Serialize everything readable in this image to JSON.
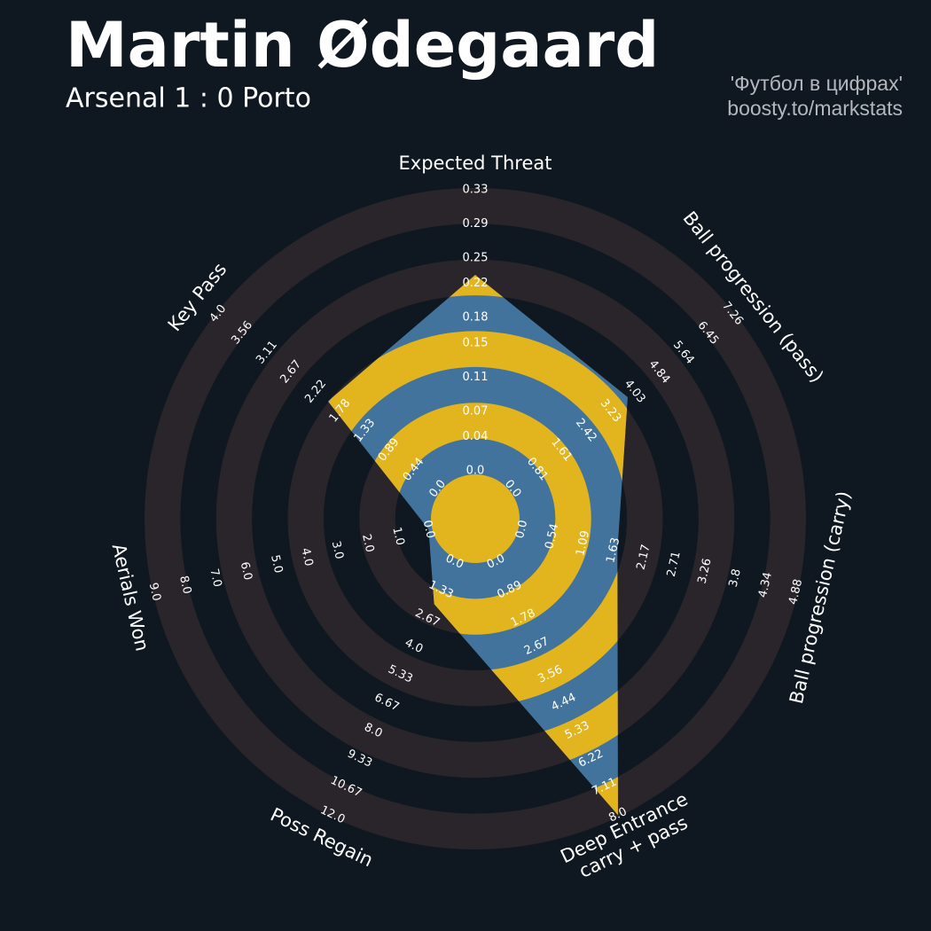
{
  "chart_data": {
    "type": "radar",
    "title": "Martin Ødegaard",
    "subtitle": "Arsenal 1 : 0 Porto",
    "credits": [
      "'Футбол в цифрах'",
      "boosty.to/markstats"
    ],
    "polygon_color": "#41739c",
    "ring_color": "#29252b",
    "ring_color_in_polygon": "#e2b41e",
    "axes": [
      {
        "name": "Expected Threat",
        "value": 0.23,
        "range": [
          0,
          0.33
        ],
        "ticks": [
          {
            "value": 0,
            "label": "0.0"
          },
          0.04,
          0.07,
          0.11,
          0.15,
          0.18,
          0.22,
          0.25,
          0.29,
          0.33
        ]
      },
      {
        "name": "Ball progression (pass)",
        "value": 3.8,
        "range": [
          0,
          7.26
        ],
        "ticks": [
          {
            "value": 0,
            "label": "0.0"
          },
          0.81,
          1.61,
          2.42,
          3.23,
          4.03,
          4.84,
          5.64,
          6.45,
          7.26
        ]
      },
      {
        "name": "Ball progression (carry)",
        "value": 1.7,
        "range": [
          0,
          4.88
        ],
        "ticks": [
          {
            "value": 0,
            "label": "0.0"
          },
          0.54,
          1.09,
          1.63,
          2.17,
          2.71,
          3.26,
          3.8,
          4.34,
          4.88
        ]
      },
      {
        "name": "Deep Entrance\ncarry + pass",
        "value": 8,
        "range": [
          0,
          8
        ],
        "ticks": [
          {
            "value": 0,
            "label": "0.0"
          },
          0.89,
          1.78,
          2.67,
          3.56,
          4.44,
          5.33,
          6.22,
          7.11,
          {
            "value": 8,
            "label": "8.0"
          }
        ]
      },
      {
        "name": "Poss Regain",
        "value": 2,
        "range": [
          0,
          12
        ],
        "ticks": [
          {
            "value": 0,
            "label": "0.0"
          },
          1.33,
          2.67,
          {
            "value": 4,
            "label": "4.0"
          },
          5.33,
          6.67,
          {
            "value": 8,
            "label": "8.0"
          },
          9.33,
          10.67,
          {
            "value": 12,
            "label": "12.0"
          }
        ]
      },
      {
        "name": "Aerials Won",
        "value": 0,
        "range": [
          0,
          9
        ],
        "ticks": [
          {
            "value": 0,
            "label": "0.0"
          },
          {
            "value": 1,
            "label": "1.0"
          },
          {
            "value": 2,
            "label": "2.0"
          },
          {
            "value": 3,
            "label": "3.0"
          },
          {
            "value": 4,
            "label": "4.0"
          },
          {
            "value": 5,
            "label": "5.0"
          },
          {
            "value": 6,
            "label": "6.0"
          },
          {
            "value": 7,
            "label": "7.0"
          },
          {
            "value": 8,
            "label": "8.0"
          },
          {
            "value": 9,
            "label": "9.0"
          }
        ]
      },
      {
        "name": "Key Pass",
        "value": 2,
        "range": [
          0,
          4
        ],
        "ticks": [
          {
            "value": 0,
            "label": "0.0"
          },
          0.44,
          0.89,
          1.33,
          1.78,
          2.22,
          2.67,
          3.11,
          3.56,
          {
            "value": 4,
            "label": "4.0"
          }
        ]
      }
    ]
  }
}
